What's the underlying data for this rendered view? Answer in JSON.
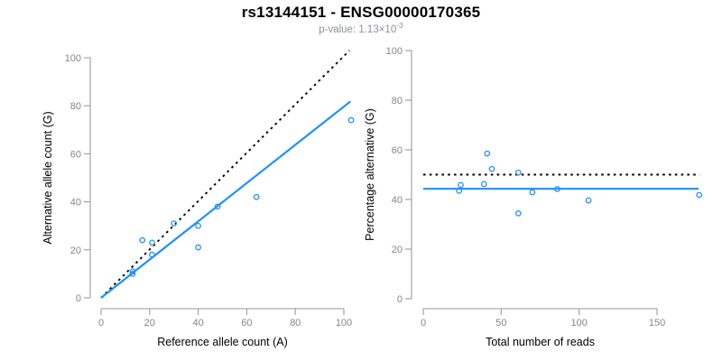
{
  "header": {
    "title": "rs13144151 - ENSG00000170365",
    "subtitle_prefix": "p-value: 1.13×10",
    "subtitle_exponent": "-3"
  },
  "colors": {
    "accent_blue": "#1E90FF",
    "dashed_black": "#000000",
    "axis_gray": "#9a9a9a",
    "tick_label_gray": "#868686",
    "axis_title_black": "#000000",
    "title_black": "#000000",
    "subtitle_gray": "#8c9196",
    "background": "#ffffff"
  },
  "chart_data": [
    {
      "id": "allele-counts",
      "type": "scatter",
      "xlabel": "Reference allele count (A)",
      "ylabel": "Alternative allele count (G)",
      "xlim": [
        0,
        103
      ],
      "ylim": [
        0,
        103
      ],
      "xticks": [
        0,
        20,
        40,
        60,
        80,
        100
      ],
      "yticks": [
        0,
        20,
        40,
        60,
        80,
        100
      ],
      "grid": false,
      "legend": "none",
      "points": [
        [
          13,
          10
        ],
        [
          13,
          11
        ],
        [
          17,
          24
        ],
        [
          21,
          18
        ],
        [
          21,
          23
        ],
        [
          30,
          31
        ],
        [
          40,
          21
        ],
        [
          40,
          30
        ],
        [
          48,
          38
        ],
        [
          64,
          42
        ],
        [
          103,
          74
        ]
      ],
      "lines": [
        {
          "name": "identity-line",
          "style": "dotted",
          "color": "#000000",
          "from": [
            0,
            0
          ],
          "to": [
            102.3,
            103
          ]
        },
        {
          "name": "fit-line",
          "style": "solid",
          "color": "#1E90FF",
          "from": [
            0,
            0
          ],
          "to": [
            102.7,
            81.8
          ]
        }
      ]
    },
    {
      "id": "percentage-alternative",
      "type": "scatter",
      "xlabel": "Total number of reads",
      "ylabel": "Percentage alternative (G)",
      "xlim": [
        0,
        177
      ],
      "ylim": [
        0,
        100
      ],
      "xticks": [
        0,
        50,
        100,
        150
      ],
      "yticks": [
        0,
        20,
        40,
        60,
        80,
        100
      ],
      "grid": false,
      "legend": "none",
      "points": [
        [
          23,
          43.5
        ],
        [
          24,
          45.8
        ],
        [
          39,
          46.2
        ],
        [
          41,
          58.5
        ],
        [
          44,
          52.3
        ],
        [
          61,
          50.8
        ],
        [
          61,
          34.4
        ],
        [
          70,
          42.9
        ],
        [
          86,
          44.2
        ],
        [
          106,
          39.6
        ],
        [
          177,
          41.8
        ]
      ],
      "lines": [
        {
          "name": "expected-50pct-line",
          "style": "dotted",
          "color": "#000000",
          "from": [
            0,
            50
          ],
          "to": [
            177.3,
            50
          ]
        },
        {
          "name": "mean-ratio-line",
          "style": "solid",
          "color": "#1E90FF",
          "from": [
            0,
            44.3
          ],
          "to": [
            176.8,
            44.3
          ]
        }
      ]
    }
  ]
}
